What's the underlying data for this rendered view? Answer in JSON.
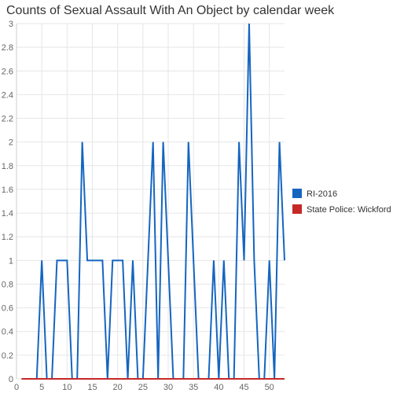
{
  "chart_data": {
    "type": "line",
    "title": "Counts of Sexual Assault With An Object by calendar week",
    "xlabel": "",
    "ylabel": "",
    "xlim": [
      0,
      53
    ],
    "ylim": [
      0,
      3
    ],
    "x_ticks": [
      0,
      5,
      10,
      15,
      20,
      25,
      30,
      35,
      40,
      45,
      50
    ],
    "y_ticks": [
      "0",
      "0.2",
      "0.4",
      "0.6",
      "0.8",
      "1",
      "1.2",
      "1.4",
      "1.6",
      "1.8",
      "2",
      "2.2",
      "2.4",
      "2.6",
      "2.8",
      "3"
    ],
    "grid": true,
    "legend_position": "right",
    "x": [
      1,
      2,
      3,
      4,
      5,
      6,
      7,
      8,
      9,
      10,
      11,
      12,
      13,
      14,
      15,
      16,
      17,
      18,
      19,
      20,
      21,
      22,
      23,
      24,
      25,
      26,
      27,
      28,
      29,
      30,
      31,
      32,
      33,
      34,
      35,
      36,
      37,
      38,
      39,
      40,
      41,
      42,
      43,
      44,
      45,
      46,
      47,
      48,
      49,
      50,
      51,
      52,
      53
    ],
    "series": [
      {
        "name": "RI-2016",
        "color": "#1565c0",
        "values": [
          0,
          0,
          0,
          0,
          1,
          0,
          0,
          1,
          1,
          1,
          0,
          0,
          2,
          1,
          1,
          1,
          1,
          0,
          1,
          1,
          1,
          0,
          1,
          0,
          0,
          1,
          2,
          0,
          2,
          1,
          0,
          0,
          0,
          2,
          1,
          0,
          0,
          0,
          1,
          0,
          1,
          0,
          0,
          2,
          1,
          3,
          1,
          0,
          0,
          1,
          0,
          2,
          1
        ]
      },
      {
        "name": "State Police: Wickford",
        "color": "#c62828",
        "values": [
          0,
          0,
          0,
          0,
          0,
          0,
          0,
          0,
          0,
          0,
          0,
          0,
          0,
          0,
          0,
          0,
          0,
          0,
          0,
          0,
          0,
          0,
          0,
          0,
          0,
          0,
          0,
          0,
          0,
          0,
          0,
          0,
          0,
          0,
          0,
          0,
          0,
          0,
          0,
          0,
          0,
          0,
          0,
          0,
          0,
          0,
          0,
          0,
          0,
          0,
          0,
          0,
          0
        ]
      }
    ]
  }
}
